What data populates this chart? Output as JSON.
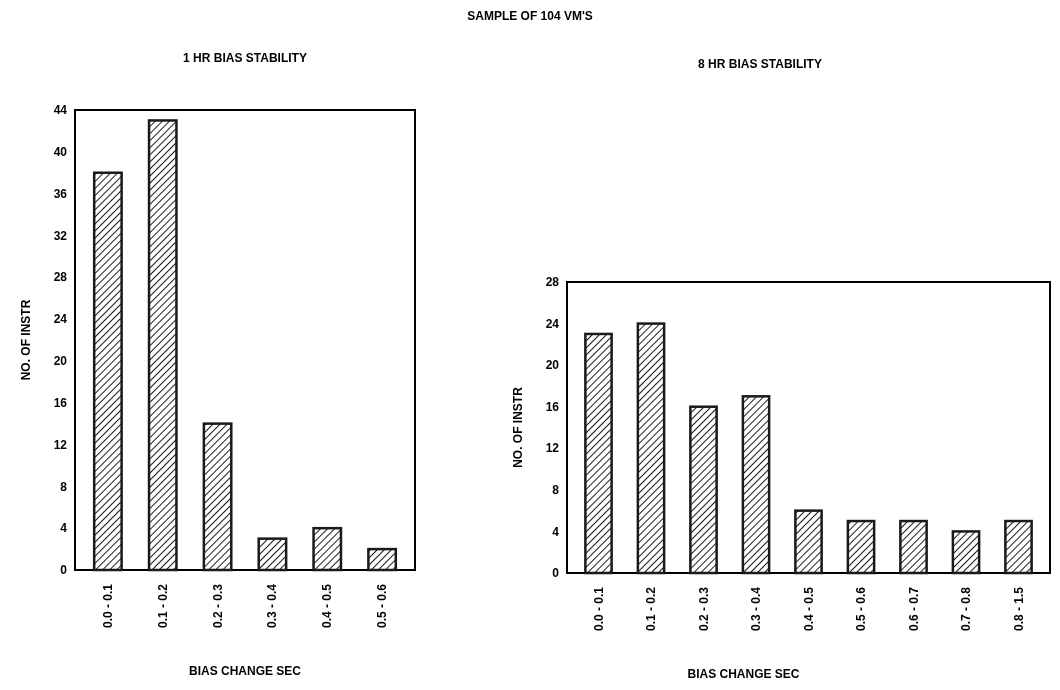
{
  "chart_data": [
    {
      "type": "bar",
      "title": "1 HR BIAS STABILITY",
      "annotations": [
        "SAMPLE OF 104 VM'S"
      ],
      "xlabel": "BIAS CHANGE SEC",
      "ylabel": "NO. OF INSTR",
      "categories": [
        "0.0 - 0.1",
        "0.1 - 0.2",
        "0.2 - 0.3",
        "0.3 - 0.4",
        "0.4 - 0.5",
        "0.5 - 0.6"
      ],
      "values": [
        38,
        43,
        14,
        3,
        4,
        2
      ],
      "color": "#1a1a1a",
      "ylim": [
        0,
        44
      ],
      "yticks": [
        0,
        4,
        8,
        12,
        16,
        20,
        24,
        28,
        32,
        36,
        40,
        44
      ],
      "grid": false
    },
    {
      "type": "bar",
      "title": "8 HR BIAS STABILITY",
      "xlabel": "BIAS CHANGE SEC",
      "ylabel": "NO. OF INSTR",
      "categories": [
        "0.0 - 0.1",
        "0.1 - 0.2",
        "0.2 - 0.3",
        "0.3 - 0.4",
        "0.4 - 0.5",
        "0.5 - 0.6",
        "0.6 - 0.7",
        "0.7 - 0.8",
        "0.8 - 1.5"
      ],
      "values": [
        23,
        24,
        16,
        17,
        6,
        5,
        5,
        4,
        5
      ],
      "color": "#1a1a1a",
      "ylim": [
        0,
        28
      ],
      "yticks": [
        0,
        4,
        8,
        12,
        16,
        20,
        24,
        28
      ],
      "grid": false
    }
  ]
}
